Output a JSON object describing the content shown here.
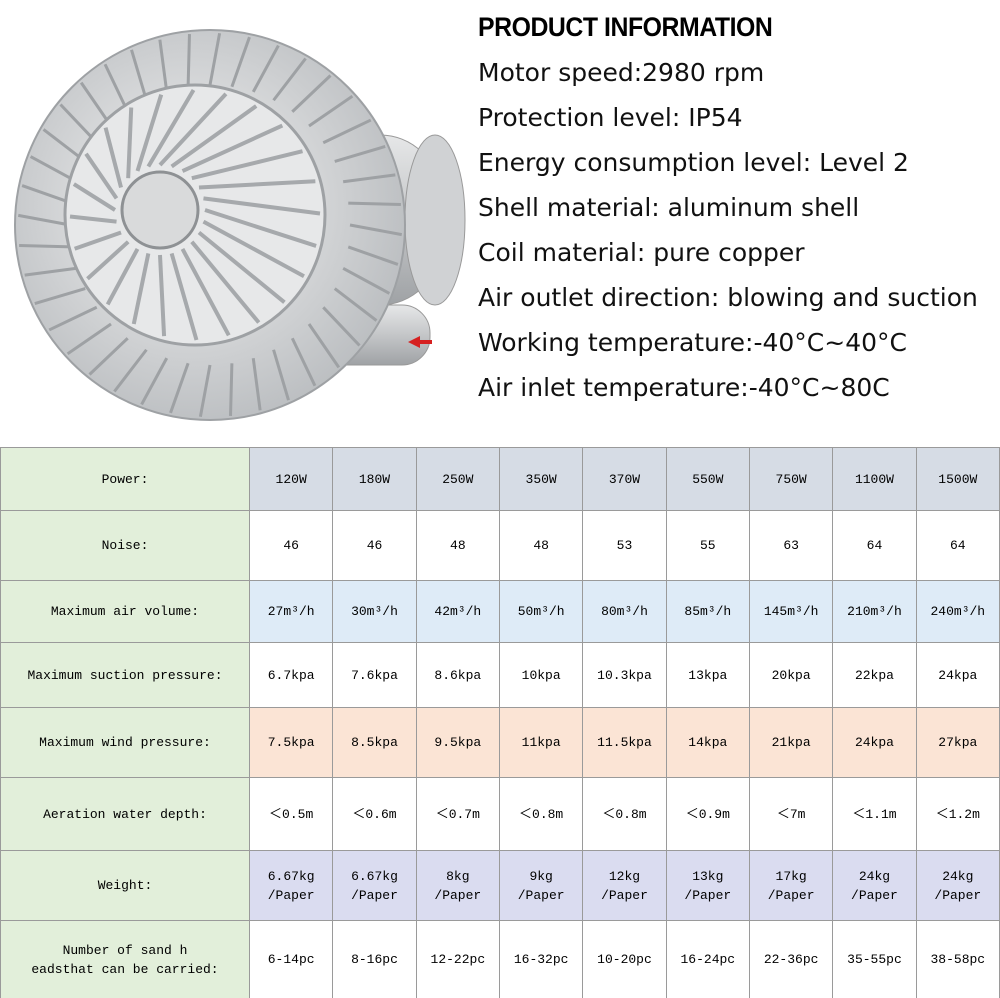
{
  "header": {
    "title": "PRODUCT INFORMATION"
  },
  "specs": [
    "Motor speed:2980 rpm",
    "Protection level: IP54",
    "Energy consumption level: Level 2",
    "Shell material: aluminum shell",
    "Coil material: pure copper",
    "Air outlet direction: blowing and suction",
    "Working temperature:-40°C~40°C",
    "Air inlet temperature:-40°C~80C"
  ],
  "table": {
    "rows": [
      [
        "Power:",
        "120W",
        "180W",
        "250W",
        "350W",
        "370W",
        "550W",
        "750W",
        "1100W",
        "1500W"
      ],
      [
        "Noise:",
        "46",
        "46",
        "48",
        "48",
        "53",
        "55",
        "63",
        "64",
        "64"
      ],
      [
        "Maximum air volume:",
        "27m³/h",
        "30m³/h",
        "42m³/h",
        "50m³/h",
        "80m³/h",
        "85m³/h",
        "145m³/h",
        "210m³/h",
        "240m³/h"
      ],
      [
        "Maximum suction pressure:",
        "6.7kpa",
        "7.6kpa",
        "8.6kpa",
        "10kpa",
        "10.3kpa",
        "13kpa",
        "20kpa",
        "22kpa",
        "24kpa"
      ],
      [
        "Maximum wind pressure:",
        "7.5kpa",
        "8.5kpa",
        "9.5kpa",
        "11kpa",
        "11.5kpa",
        "14kpa",
        "21kpa",
        "24kpa",
        "27kpa"
      ],
      [
        "Aeration water depth:",
        "＜0.5m",
        "＜0.6m",
        "＜0.7m",
        "＜0.8m",
        "＜0.8m",
        "＜0.9m",
        "＜7m",
        "＜1.1m",
        "＜1.2m"
      ],
      [
        "Weight:",
        "6.67kg\n/Paper",
        "6.67kg\n/Paper",
        "8kg\n/Paper",
        "9kg\n/Paper",
        "12kg\n/Paper",
        "13kg\n/Paper",
        "17kg\n/Paper",
        "24kg\n/Paper",
        "24kg\n/Paper"
      ],
      [
        "Number of sand h\neadsthat can be carried:",
        "6-14pc",
        "8-16pc",
        "12-22pc",
        "16-32pc",
        "10-20pc",
        "16-24pc",
        "22-36pc",
        "35-55pc",
        "38-58pc"
      ]
    ]
  }
}
